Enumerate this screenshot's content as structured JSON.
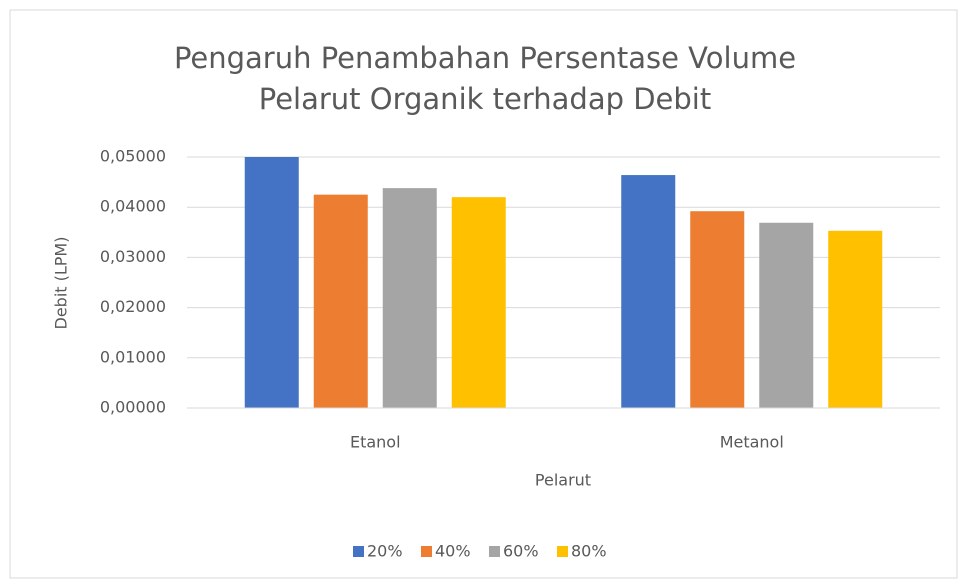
{
  "chart_data": {
    "type": "bar",
    "title": "Pengaruh Penambahan Persentase Volume Pelarut Organik terhadap Debit",
    "xlabel": "Pelarut",
    "ylabel": "Debit (LPM)",
    "categories": [
      "Etanol",
      "Metanol"
    ],
    "series": [
      {
        "name": "20%",
        "color": "#4472c4",
        "values": [
          0.05,
          0.0464
        ]
      },
      {
        "name": "40%",
        "color": "#ed7d31",
        "values": [
          0.0425,
          0.0392
        ]
      },
      {
        "name": "60%",
        "color": "#a5a5a5",
        "values": [
          0.0438,
          0.0369
        ]
      },
      {
        "name": "80%",
        "color": "#ffc000",
        "values": [
          0.042,
          0.0353
        ]
      }
    ],
    "ylim": [
      0,
      0.05
    ],
    "yticks": [
      {
        "value": 0,
        "label": "0,00000"
      },
      {
        "value": 0.01,
        "label": "0,01000"
      },
      {
        "value": 0.02,
        "label": "0,02000"
      },
      {
        "value": 0.03,
        "label": "0,03000"
      },
      {
        "value": 0.04,
        "label": "0,04000"
      },
      {
        "value": 0.05,
        "label": "0,05000"
      }
    ],
    "grid": true,
    "legend": "bottom"
  }
}
